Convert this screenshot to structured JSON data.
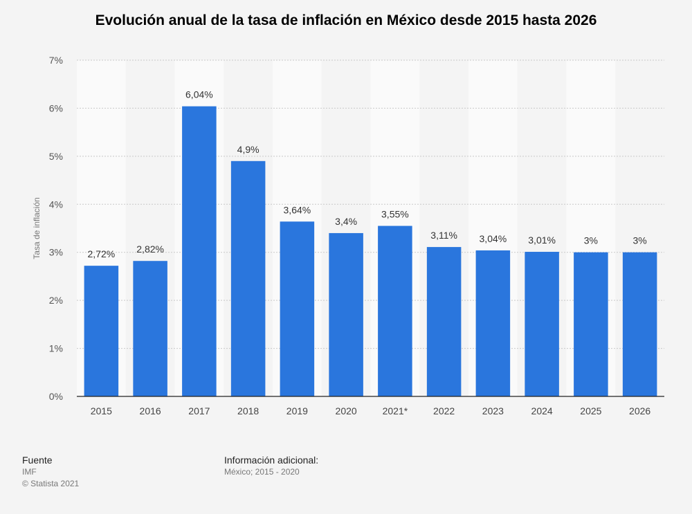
{
  "chart_data": {
    "type": "bar",
    "title": "Evolución anual de la tasa de inflación en México desde 2015 hasta 2026",
    "ylabel": "Tasa de inflación",
    "xlabel": "",
    "categories": [
      "2015",
      "2016",
      "2017",
      "2018",
      "2019",
      "2020",
      "2021*",
      "2022",
      "2023",
      "2024",
      "2025",
      "2026"
    ],
    "values": [
      2.72,
      2.82,
      6.04,
      4.9,
      3.64,
      3.4,
      3.55,
      3.11,
      3.04,
      3.01,
      3,
      3
    ],
    "data_labels": [
      "2,72%",
      "2,82%",
      "6,04%",
      "4,9%",
      "3,64%",
      "3,4%",
      "3,55%",
      "3,11%",
      "3,04%",
      "3,01%",
      "3%",
      "3%"
    ],
    "ylim": [
      0,
      7
    ],
    "yticks": [
      0,
      1,
      2,
      3,
      4,
      5,
      6,
      7
    ],
    "ytick_labels": [
      "0%",
      "1%",
      "2%",
      "3%",
      "4%",
      "5%",
      "6%",
      "7%"
    ],
    "grid": true,
    "bar_color": "#2a76dd",
    "alt_band_color": "#fafafa"
  },
  "footer": {
    "source_heading": "Fuente",
    "source_name": "IMF",
    "copyright": "© Statista 2021",
    "info_heading": "Información adicional:",
    "info_text": "México; 2015 - 2020"
  }
}
